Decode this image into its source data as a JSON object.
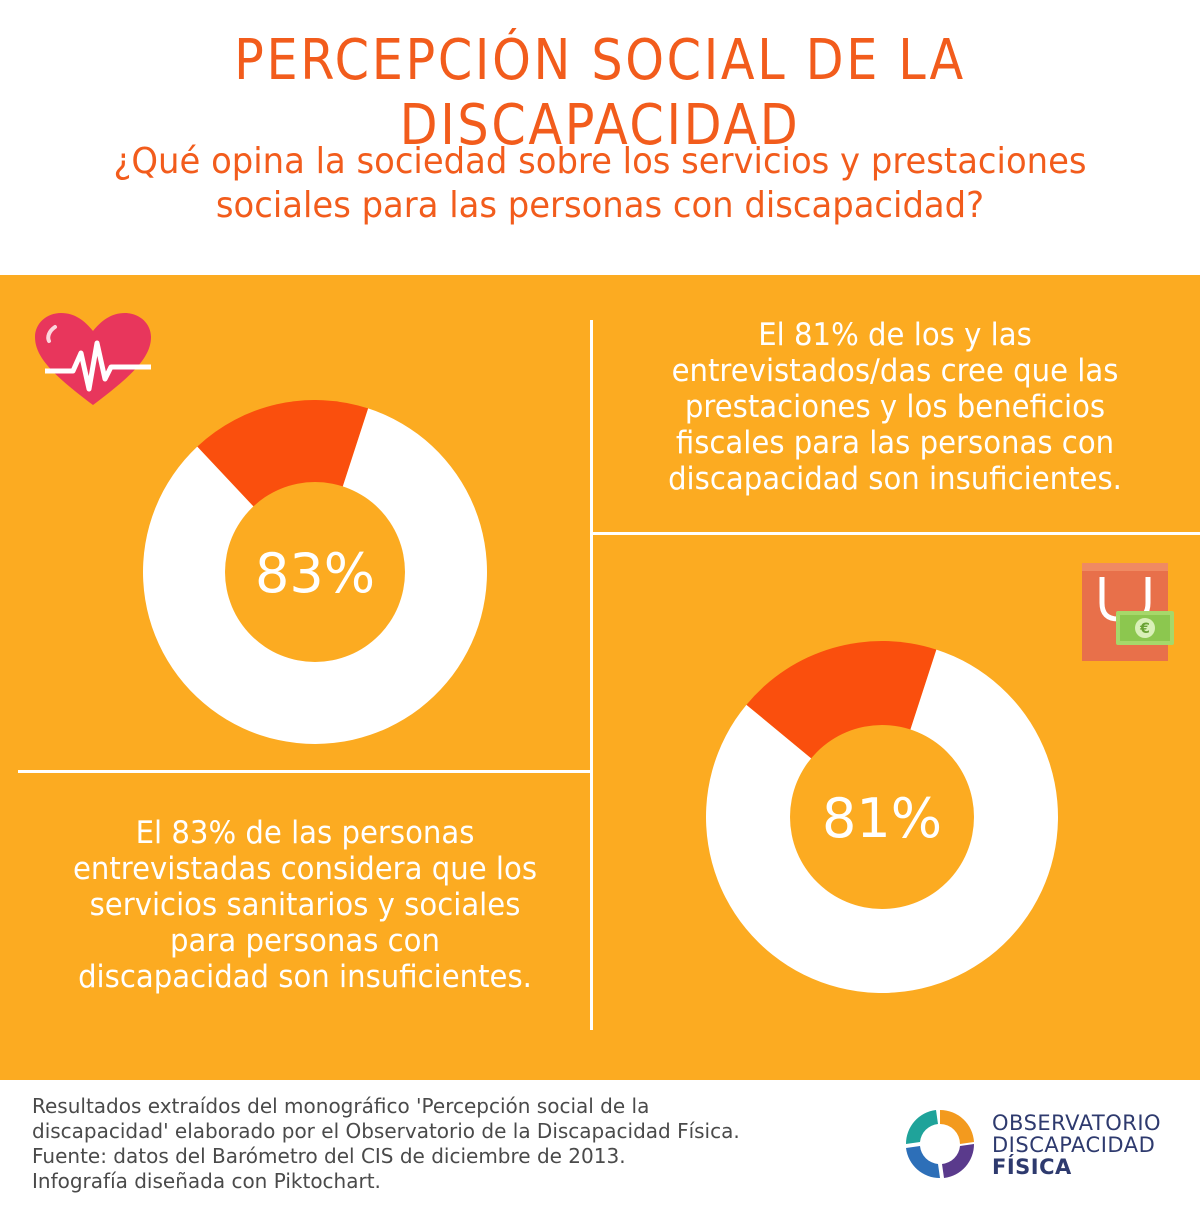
{
  "header": {
    "title": "PERCEPCIÓN SOCIAL DE LA DISCAPACIDAD",
    "subtitle_line1": "¿Qué opina la sociedad sobre los servicios y prestaciones",
    "subtitle_line2": "sociales para las personas con discapacidad?"
  },
  "stat_left": {
    "label": "83%",
    "text_lines": [
      "El 83% de las personas",
      "entrevistadas considera que los",
      "servicios sanitarios y sociales",
      "para personas con",
      "discapacidad son insuficientes."
    ],
    "icon": "heart-pulse-icon"
  },
  "stat_right": {
    "label": "81%",
    "text_lines": [
      "El 81% de los y las",
      "entrevistados/das cree que las",
      "prestaciones y los beneficios",
      "fiscales para las personas con",
      "discapacidad son insuficientes."
    ],
    "icon": "shopping-bag-euro-icon"
  },
  "chart_data": [
    {
      "type": "pie",
      "donut": true,
      "labels": [
        "",
        ""
      ],
      "values": [
        83,
        17
      ],
      "center_label": "83%",
      "colors": [
        "#ffffff",
        "#fa4f0d"
      ]
    },
    {
      "type": "pie",
      "donut": true,
      "labels": [
        "",
        ""
      ],
      "values": [
        81,
        19
      ],
      "center_label": "81%",
      "colors": [
        "#ffffff",
        "#fa4f0d"
      ]
    }
  ],
  "footer": {
    "lines": [
      "Resultados extraídos del monográfico 'Percepción social de la",
      "discapacidad' elaborado por el Observatorio de la Discapacidad Física.",
      "Fuente: datos del Barómetro del CIS de diciembre de 2013.",
      "Infografía diseñada con Piktochart."
    ]
  },
  "logo": {
    "line1": "OBSERVATORIO",
    "line2": "DISCAPACIDAD",
    "line3": "FÍSICA"
  },
  "colors": {
    "accent": "#f25c1c",
    "panel": "#fcab21",
    "slice": "#fa4f0d"
  }
}
